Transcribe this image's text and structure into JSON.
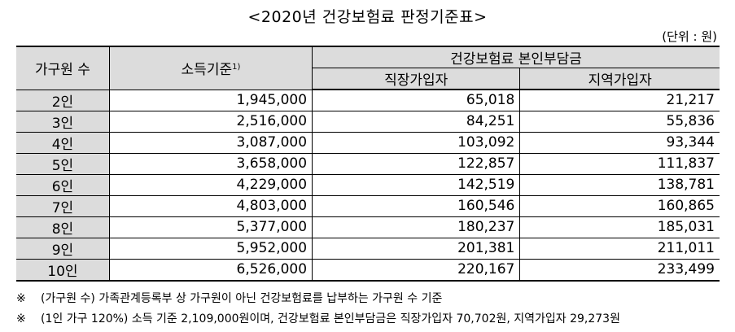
{
  "title": "<2020년 건강보험료 판정기준표>",
  "unit": "(단위 : 원)",
  "headers": {
    "household": "가구원 수",
    "income": "소득기준",
    "income_sup": "1)",
    "insurance": "건강보험료 본인부담금",
    "workplace": "직장가입자",
    "regional": "지역가입자"
  },
  "rows": [
    {
      "household": "2인",
      "income": "1,945,000",
      "workplace": "65,018",
      "regional": "21,217"
    },
    {
      "household": "3인",
      "income": "2,516,000",
      "workplace": "84,251",
      "regional": "55,836"
    },
    {
      "household": "4인",
      "income": "3,087,000",
      "workplace": "103,092",
      "regional": "93,344"
    },
    {
      "household": "5인",
      "income": "3,658,000",
      "workplace": "122,857",
      "regional": "111,837"
    },
    {
      "household": "6인",
      "income": "4,229,000",
      "workplace": "142,519",
      "regional": "138,781"
    },
    {
      "household": "7인",
      "income": "4,803,000",
      "workplace": "160,546",
      "regional": "160,865"
    },
    {
      "household": "8인",
      "income": "5,377,000",
      "workplace": "180,237",
      "regional": "185,031"
    },
    {
      "household": "9인",
      "income": "5,952,000",
      "workplace": "201,381",
      "regional": "211,011"
    },
    {
      "household": "10인",
      "income": "6,526,000",
      "workplace": "220,167",
      "regional": "233,499"
    }
  ],
  "notes": [
    {
      "mark": "※",
      "text": "(가구원 수) 가족관계등록부 상 가구원이 아닌 건강보험료를 납부하는 가구원 수 기준"
    },
    {
      "mark": "※",
      "text": "(1인 가구 120%) 소득 기준 2,109,000원이며, 건강보험료 본인부담금은 직장가입자 70,702원, 지역가입자 29,273원"
    }
  ]
}
